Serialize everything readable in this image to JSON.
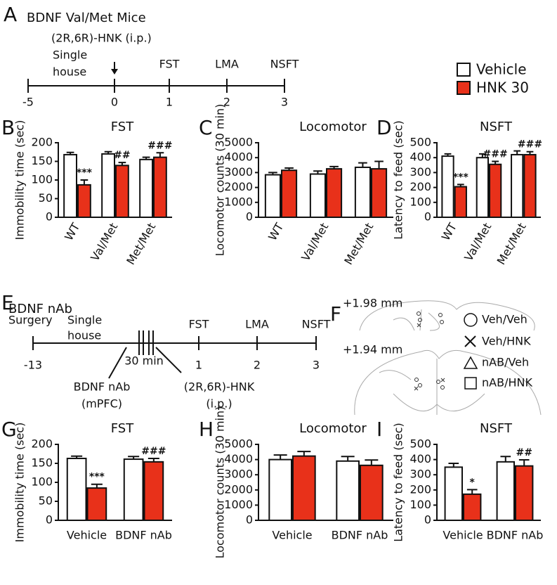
{
  "panel_labels": [
    "A",
    "B",
    "C",
    "D",
    "E",
    "F",
    "G",
    "H",
    "I"
  ],
  "timeline_a": {
    "title": "BDNF Val/Met Mice",
    "treatment": "(2R,6R)-HNK (i.p.)",
    "housing": [
      "Single",
      "house"
    ],
    "tests": [
      "FST",
      "LMA",
      "NSFT"
    ],
    "ticks": [
      -5,
      0,
      1,
      2,
      3
    ]
  },
  "legend": [
    {
      "name": "Vehicle",
      "color": "#ffffff"
    },
    {
      "name": "HNK 30",
      "color": "#e8311a"
    }
  ],
  "chart_data": [
    {
      "type": "bar",
      "title": "FST",
      "ylabel": "Immobility time (sec)",
      "categories": [
        "WT",
        "Val/Met",
        "Met/Met"
      ],
      "category_label_angle": -60,
      "series": [
        {
          "values": [
            168,
            170,
            155
          ],
          "errors": [
            6,
            6,
            6
          ],
          "annotations": [
            null,
            null,
            null
          ]
        },
        {
          "values": [
            87,
            139,
            161
          ],
          "errors": [
            13,
            8,
            12
          ],
          "annotations": [
            "***",
            "##",
            "###"
          ]
        }
      ],
      "ylim": [
        0,
        200
      ],
      "yticks": [
        0,
        50,
        100,
        150,
        200
      ]
    },
    {
      "type": "bar",
      "title": "Locomotor",
      "ylabel": "Locomotor counts (30 min)",
      "categories": [
        "WT",
        "Val/Met",
        "Met/Met"
      ],
      "category_label_angle": -60,
      "series": [
        {
          "values": [
            2850,
            2900,
            3350
          ],
          "errors": [
            150,
            200,
            300
          ],
          "annotations": [
            null,
            null,
            null
          ]
        },
        {
          "values": [
            3150,
            3250,
            3250
          ],
          "errors": [
            150,
            150,
            500
          ],
          "annotations": [
            null,
            null,
            null
          ]
        }
      ],
      "ylim": [
        0,
        5000
      ],
      "yticks": [
        0,
        1000,
        2000,
        3000,
        4000,
        5000
      ]
    },
    {
      "type": "bar",
      "title": "NSFT",
      "ylabel": "Latency to feed (sec)",
      "categories": [
        "WT",
        "Val/Met",
        "Met/Met"
      ],
      "category_label_angle": -60,
      "series": [
        {
          "values": [
            410,
            400,
            420
          ],
          "errors": [
            15,
            25,
            25
          ],
          "annotations": [
            null,
            null,
            null
          ]
        },
        {
          "values": [
            205,
            355,
            420
          ],
          "errors": [
            15,
            20,
            20
          ],
          "annotations": [
            "***",
            "###",
            "###"
          ]
        }
      ],
      "ylim": [
        0,
        500
      ],
      "yticks": [
        0,
        100,
        200,
        300,
        400,
        500
      ]
    },
    {
      "type": "bar",
      "title": "FST",
      "ylabel": "Immobility time (sec)",
      "categories": [
        "Vehicle",
        "BDNF nAb"
      ],
      "category_label_angle": 0,
      "series": [
        {
          "values": [
            163,
            161
          ],
          "errors": [
            6,
            7
          ],
          "annotations": [
            null,
            null
          ]
        },
        {
          "values": [
            85,
            154
          ],
          "errors": [
            10,
            9
          ],
          "annotations": [
            "***",
            "###"
          ]
        }
      ],
      "ylim": [
        0,
        200
      ],
      "yticks": [
        0,
        50,
        100,
        150,
        200
      ]
    },
    {
      "type": "bar",
      "title": "Locomotor",
      "ylabel": "Locomotor counts (30 min)",
      "categories": [
        "Vehicle",
        "BDNF nAb"
      ],
      "category_label_angle": 0,
      "series": [
        {
          "values": [
            4000,
            3900
          ],
          "errors": [
            300,
            300
          ],
          "annotations": [
            null,
            null
          ]
        },
        {
          "values": [
            4230,
            3620
          ],
          "errors": [
            300,
            350
          ],
          "annotations": [
            null,
            null
          ]
        }
      ],
      "ylim": [
        0,
        5000
      ],
      "yticks": [
        0,
        1000,
        2000,
        3000,
        4000,
        5000
      ]
    },
    {
      "type": "bar",
      "title": "NSFT",
      "ylabel": "Latency to feed (sec)",
      "categories": [
        "Vehicle",
        "BDNF nAb"
      ],
      "category_label_angle": 0,
      "series": [
        {
          "values": [
            350,
            385
          ],
          "errors": [
            25,
            35
          ],
          "annotations": [
            null,
            null
          ]
        },
        {
          "values": [
            172,
            358
          ],
          "errors": [
            30,
            40
          ],
          "annotations": [
            "*",
            "##"
          ]
        }
      ],
      "ylim": [
        0,
        500
      ],
      "yticks": [
        0,
        100,
        200,
        300,
        400,
        500
      ]
    }
  ],
  "timeline_e": {
    "title": "BDNF nAb",
    "surgery": "Surgery",
    "housing": [
      "Single",
      "house"
    ],
    "tests": [
      "FST",
      "LMA",
      "NSFT"
    ],
    "ticks": [
      -13,
      1,
      2,
      3
    ],
    "interval": "30 min",
    "infusion": [
      "BDNF nAb",
      "(mPFC)"
    ],
    "treatment": [
      "(2R,6R)-HNK",
      "(i.p.)"
    ]
  },
  "panel_f": {
    "sections": [
      "+1.98 mm",
      "+1.94 mm"
    ],
    "groups": [
      "Veh/Veh",
      "Veh/HNK",
      "nAB/Veh",
      "nAB/HNK"
    ]
  }
}
